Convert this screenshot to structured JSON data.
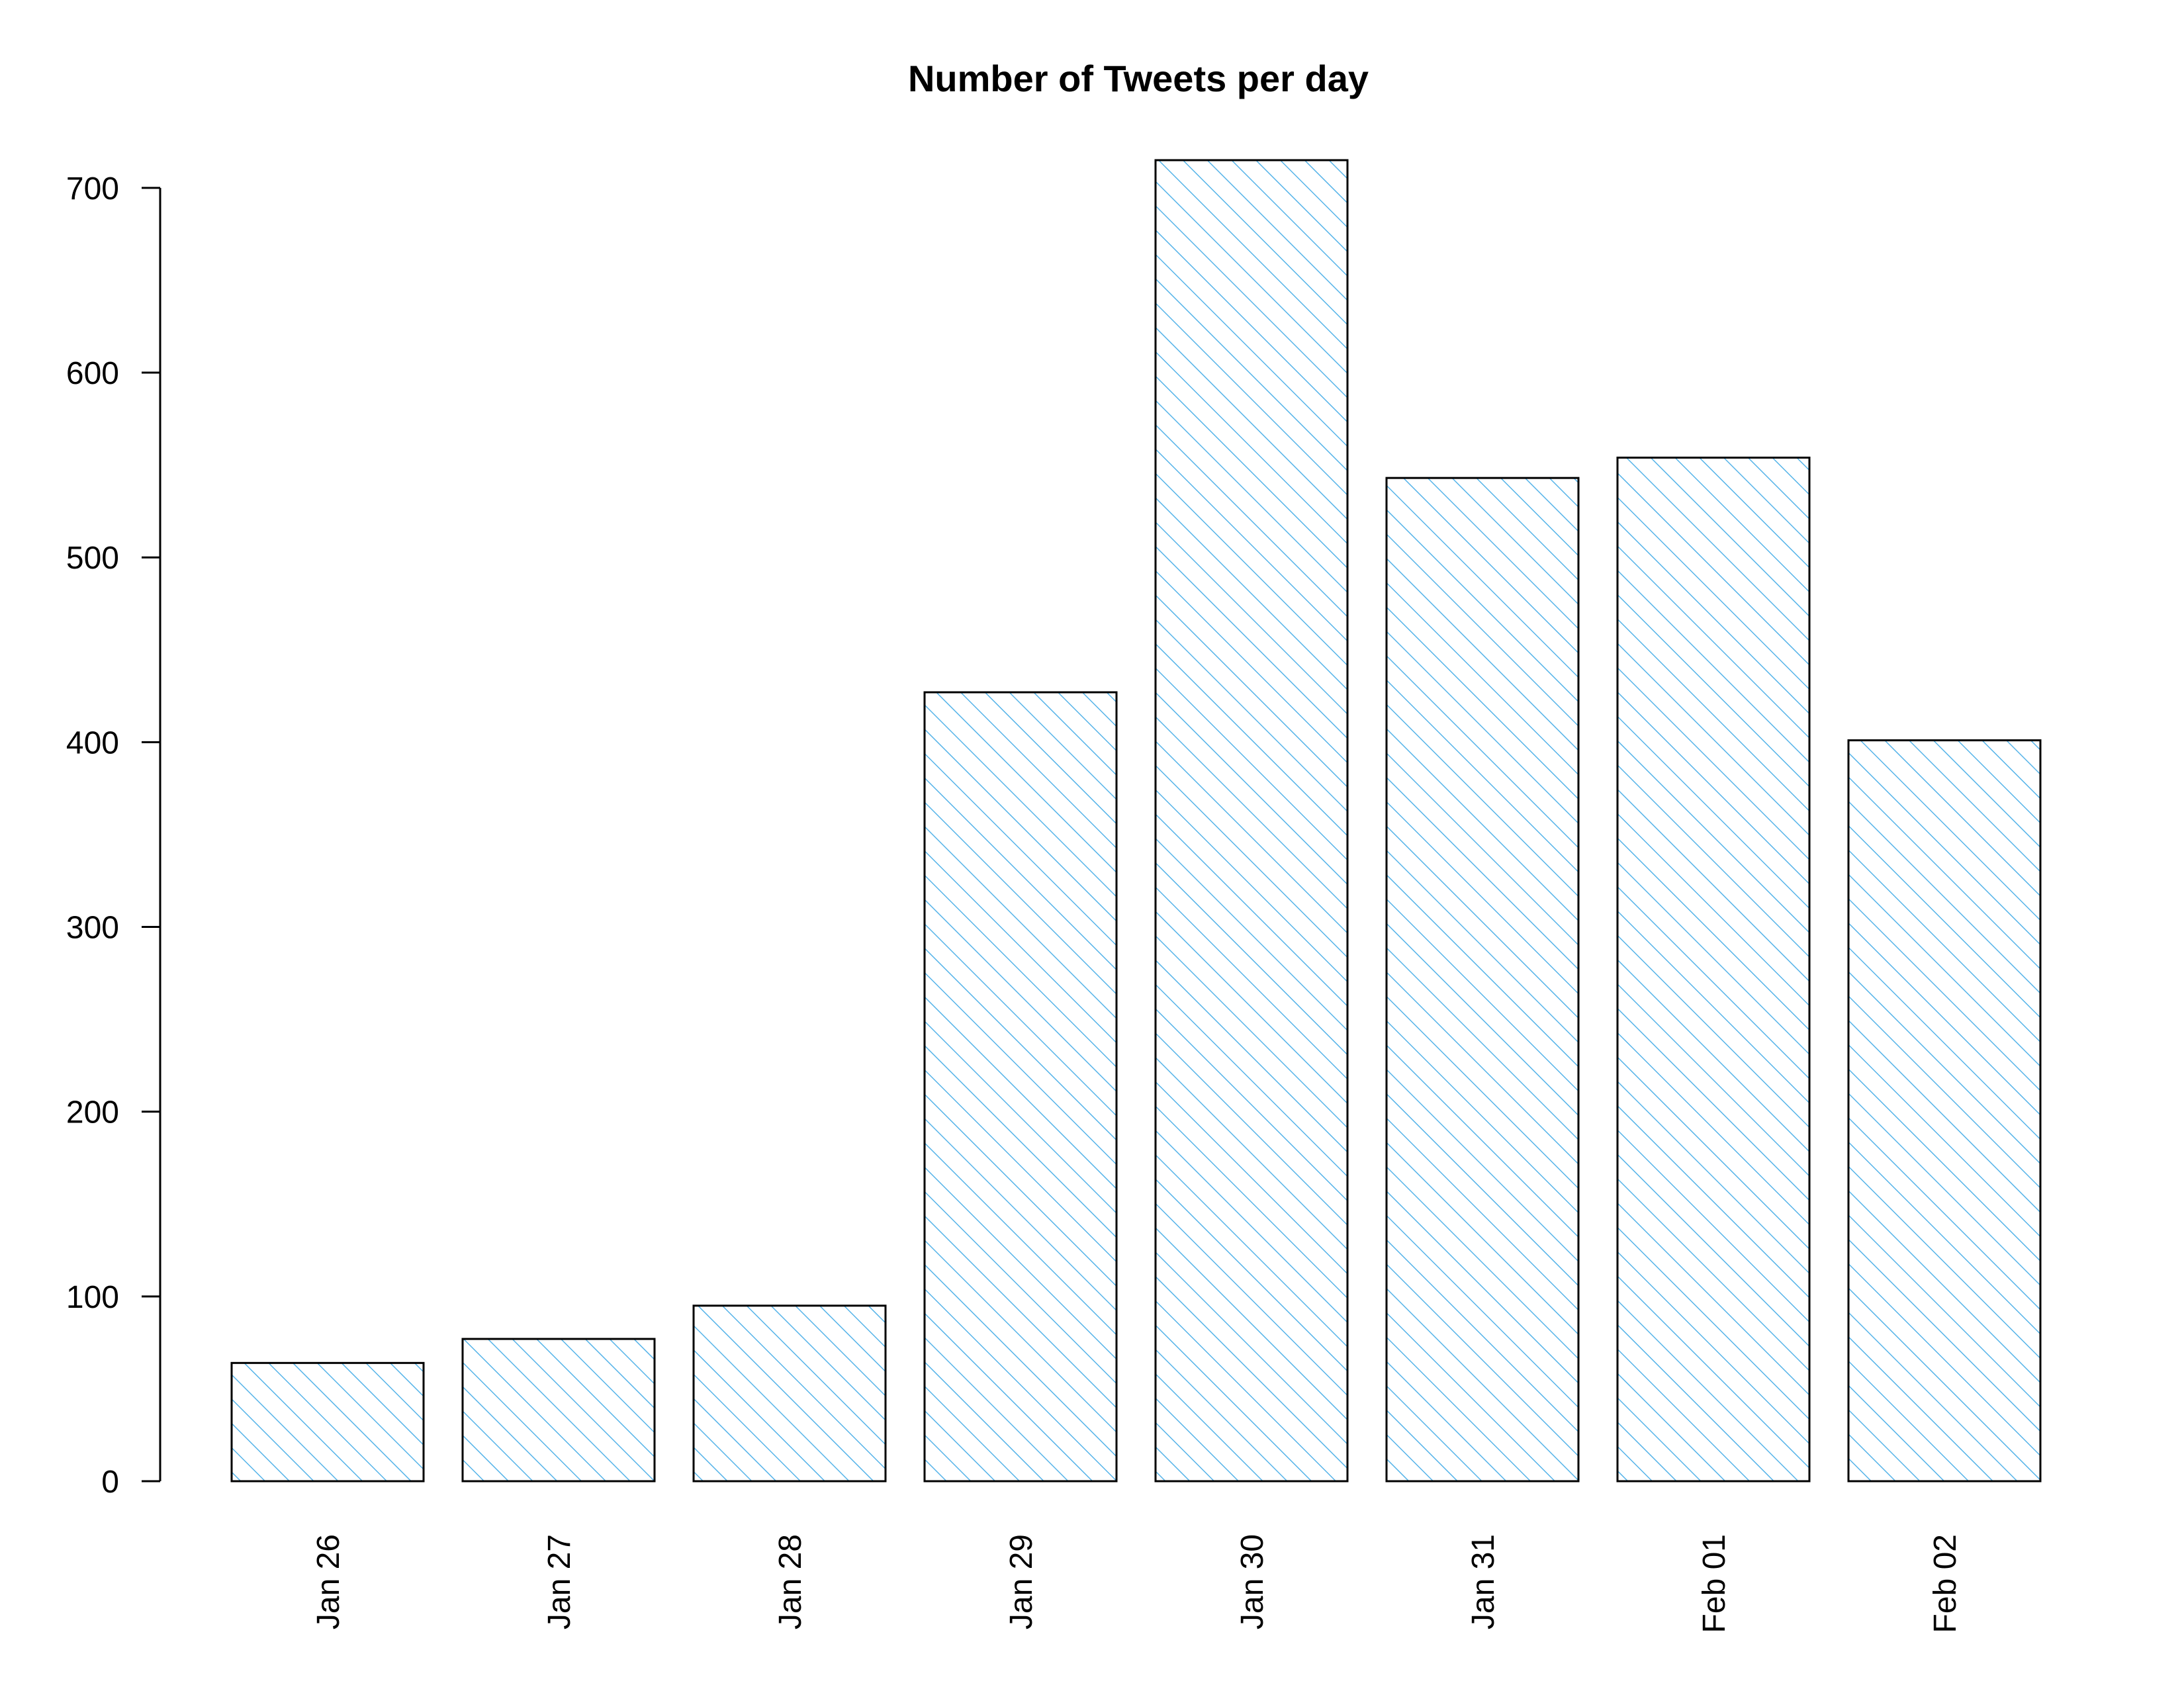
{
  "chart_data": {
    "type": "bar",
    "title": "Number of Tweets per day",
    "xlabel": "",
    "ylabel": "",
    "categories": [
      "Jan 26",
      "Jan 27",
      "Jan 28",
      "Jan 29",
      "Jan 30",
      "Jan 31",
      "Feb 01",
      "Feb 02"
    ],
    "values": [
      64,
      77,
      95,
      427,
      715,
      543,
      554,
      401
    ],
    "yticks": [
      0,
      100,
      200,
      300,
      400,
      500,
      600,
      700
    ],
    "ylim": [
      0,
      715
    ],
    "grid": false,
    "legend": "none",
    "bar_fill": "hatched",
    "hatch_color": "#56b4e9",
    "outline_color": "#000000"
  }
}
